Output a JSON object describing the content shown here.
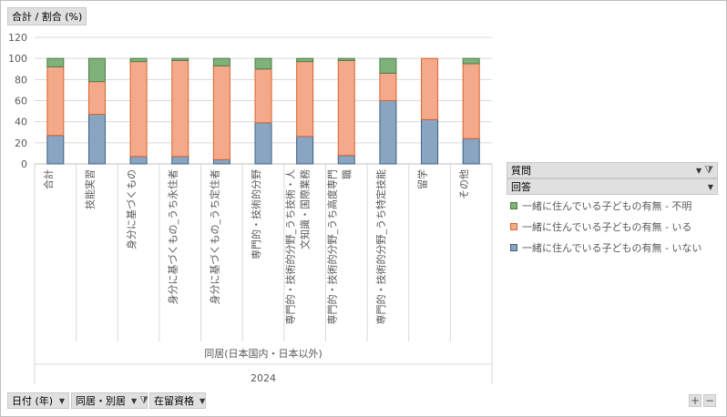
{
  "header": {
    "value_field": "合計 / 割合 (%)"
  },
  "row_fields": [
    {
      "label": "日付 (年)",
      "filtered": false
    },
    {
      "label": "同居・別居",
      "filtered": true
    },
    {
      "label": "在留資格",
      "filtered": false
    }
  ],
  "legend_panel": {
    "field_question": "質問",
    "field_answer": "回答"
  },
  "colors": {
    "unknown": "#7fb17a",
    "yes": "#f4a98a",
    "no": "#8aa5c1"
  },
  "chart_data": {
    "type": "bar",
    "stacked": true,
    "ylim": [
      0,
      120
    ],
    "yticks": [
      0,
      20,
      40,
      60,
      80,
      100,
      120
    ],
    "grid": true,
    "legend_placement": "right",
    "categories": [
      [
        "合計"
      ],
      [
        "技能実習"
      ],
      [
        "身分に基づくもの"
      ],
      [
        "身分に基づくもの_うち永住者"
      ],
      [
        "身分に基づくもの_うち定住者"
      ],
      [
        "専門的・技術的分野"
      ],
      [
        "専門的・技術的分野_うち技術・人",
        "文知識・国際業務"
      ],
      [
        "専門的・技術的分野_うち高度専門",
        "職"
      ],
      [
        "専門的・技術的分野_うち特定技能"
      ],
      [
        "留学"
      ],
      [
        "その他"
      ]
    ],
    "group_label": "同居(日本国内・日本以外)",
    "year_label": "2024",
    "series": [
      {
        "name": "一緒に住んでいる子どもの有無 - いない",
        "color": "#8aa5c1",
        "values": [
          27,
          47,
          7,
          7,
          4,
          39,
          26,
          8,
          60,
          42,
          24
        ]
      },
      {
        "name": "一緒に住んでいる子どもの有無 - いる",
        "color": "#f4a98a",
        "values": [
          65,
          31,
          90,
          91,
          89,
          51,
          71,
          90,
          26,
          58,
          71
        ]
      },
      {
        "name": "一緒に住んでいる子どもの有無 - 不明",
        "color": "#7fb17a",
        "values": [
          8,
          22,
          3,
          2,
          7,
          10,
          3,
          2,
          14,
          0,
          5
        ]
      }
    ]
  }
}
